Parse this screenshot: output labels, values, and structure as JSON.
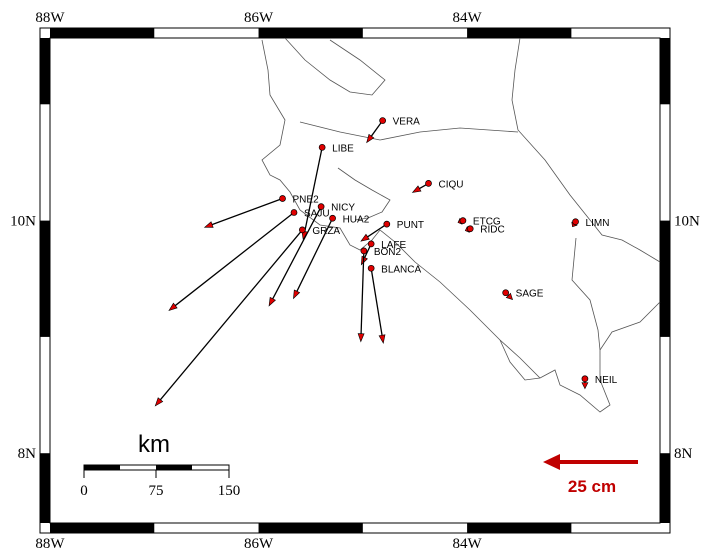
{
  "map": {
    "extent": {
      "lon": [
        -88,
        -82.15
      ],
      "lat": [
        7.4,
        11.57
      ]
    },
    "lon_ticks": [
      {
        "value": -88,
        "label": "88W"
      },
      {
        "value": -86,
        "label": "86W"
      },
      {
        "value": -84,
        "label": "84W"
      }
    ],
    "lat_ticks": [
      {
        "value": 10,
        "label": "10N"
      },
      {
        "value": 8,
        "label": "8N"
      }
    ],
    "station_color": "#e00000",
    "arrow_color": "#000000",
    "stations": [
      {
        "name": "VERA",
        "lon": -84.81,
        "lat": 10.86,
        "ve": -4.2,
        "vn": -5.8
      },
      {
        "name": "LIBE",
        "lon": -85.39,
        "lat": 10.63,
        "ve": -5.0,
        "vn": -24.2
      },
      {
        "name": "CIQU",
        "lon": -84.37,
        "lat": 10.32,
        "ve": -4.2,
        "vn": -2.4
      },
      {
        "name": "PNE2",
        "lon": -85.77,
        "lat": 10.19,
        "ve": -20.5,
        "vn": -7.6
      },
      {
        "name": "SAJU",
        "lon": -85.66,
        "lat": 10.07,
        "ve": -32.9,
        "vn": -25.8
      },
      {
        "name": "NICY",
        "lon": -85.4,
        "lat": 10.12,
        "ve": -13.7,
        "vn": -26.1
      },
      {
        "name": "HUA2",
        "lon": -85.29,
        "lat": 10.02,
        "ve": -10.3,
        "vn": -21.1
      },
      {
        "name": "GRZA",
        "lon": -85.58,
        "lat": 9.92,
        "ve": -38.7,
        "vn": -46.3
      },
      {
        "name": "PUNT",
        "lon": -84.77,
        "lat": 9.97,
        "ve": -6.8,
        "vn": -4.5
      },
      {
        "name": "LAFE",
        "lon": -84.92,
        "lat": 9.8,
        "ve": -2.6,
        "vn": -5.5
      },
      {
        "name": "BON2",
        "lon": -84.99,
        "lat": 9.74,
        "ve": -0.8,
        "vn": -23.9
      },
      {
        "name": "BLANCA",
        "lon": -84.92,
        "lat": 9.59,
        "ve": 3.2,
        "vn": -19.7
      },
      {
        "name": "ETCG",
        "lon": -84.04,
        "lat": 10.0,
        "ve": -1.3,
        "vn": -0.5
      },
      {
        "name": "RIDC",
        "lon": -83.97,
        "lat": 9.93,
        "ve": -1.3,
        "vn": -0.5
      },
      {
        "name": "LIMN",
        "lon": -82.96,
        "lat": 9.99,
        "ve": -0.8,
        "vn": -1.3
      },
      {
        "name": "SAGE",
        "lon": -83.63,
        "lat": 9.38,
        "ve": 1.8,
        "vn": -1.8
      },
      {
        "name": "NEIL",
        "lon": -82.87,
        "lat": 8.64,
        "ve": 0.0,
        "vn": -2.6
      }
    ],
    "scale_bar": {
      "unit": "km",
      "labels": [
        "0",
        "75",
        "150"
      ]
    },
    "velocity_legend": {
      "value_cm": 25,
      "label": "25 cm",
      "color": "#c00000"
    }
  }
}
